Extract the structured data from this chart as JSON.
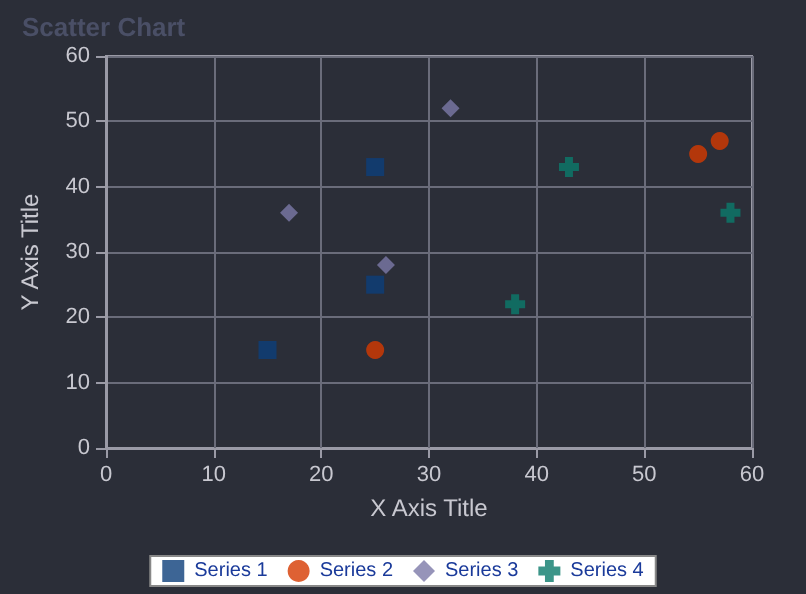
{
  "chart_data": {
    "type": "scatter",
    "title": "Scatter Chart",
    "xlabel": "X Axis Title",
    "ylabel": "Y Axis Title",
    "series": [
      {
        "name": "Series 1",
        "color": "#0c3f7a",
        "marker": "square",
        "x": [
          15,
          25,
          25
        ],
        "values": [
          15,
          25,
          43
        ]
      },
      {
        "name": "Series 2",
        "color": "#d63a00",
        "marker": "circle",
        "x": [
          25,
          55,
          57
        ],
        "values": [
          15,
          45,
          47
        ]
      },
      {
        "name": "Series 3",
        "color": "#7c79a8",
        "marker": "diamond",
        "x": [
          17,
          26,
          32
        ],
        "values": [
          36,
          28,
          52
        ]
      },
      {
        "name": "Series 4",
        "color": "#0b7a6c",
        "marker": "cross",
        "x": [
          38,
          43,
          58
        ],
        "values": [
          22,
          43,
          36
        ]
      }
    ],
    "xlim": [
      0,
      60
    ],
    "xticks": [
      0,
      10,
      20,
      30,
      40,
      50,
      60
    ],
    "ylim": [
      0,
      60
    ],
    "yticks": [
      0,
      10,
      20,
      30,
      40,
      50,
      60
    ],
    "grid": true,
    "legend": "bottom"
  }
}
